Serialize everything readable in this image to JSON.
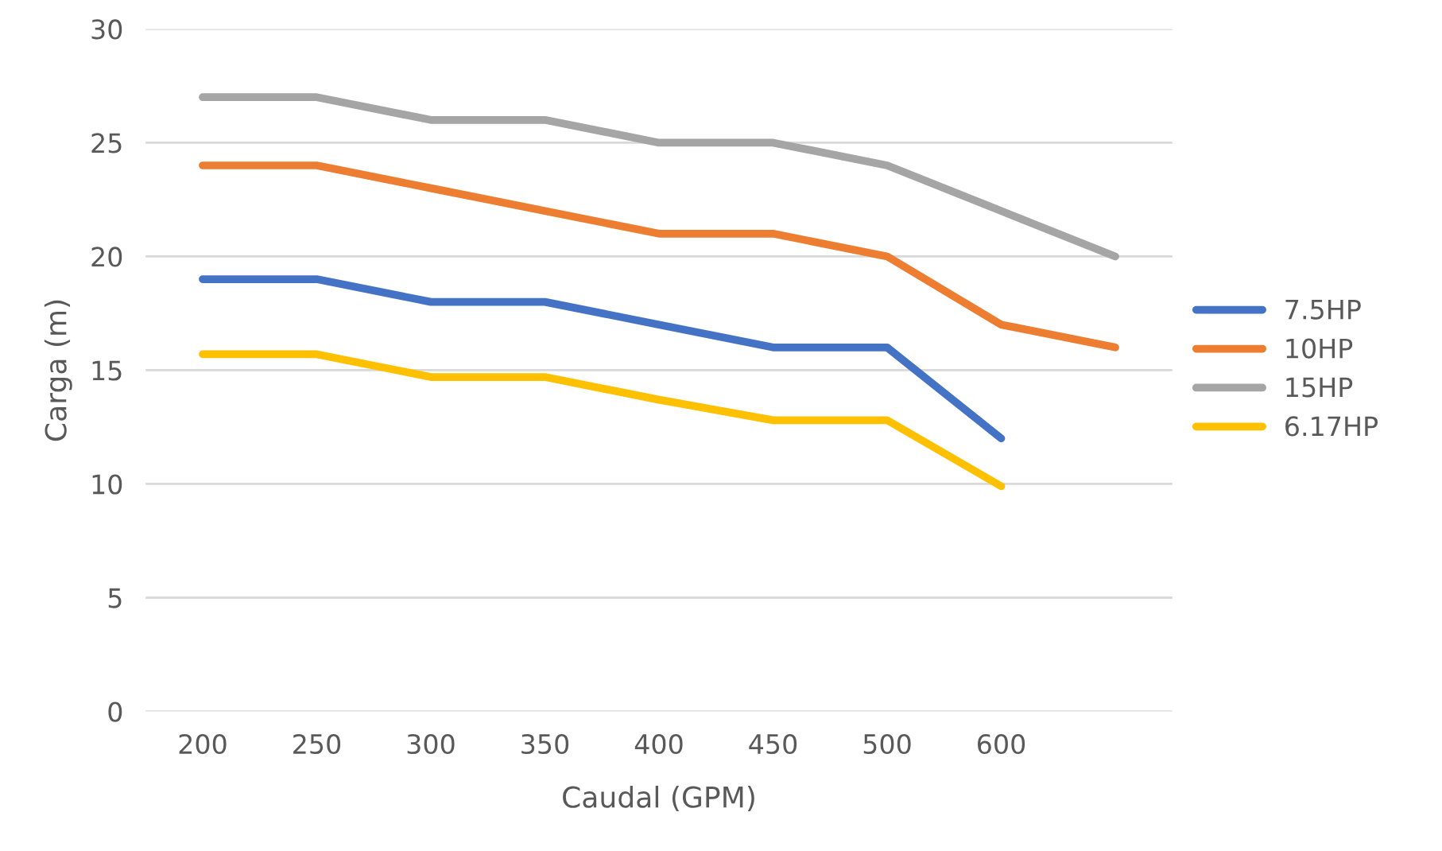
{
  "chart_data": {
    "type": "line",
    "xlabel": "Caudal (GPM)",
    "ylabel": "Carga (m)",
    "categories": [
      "200",
      "250",
      "300",
      "350",
      "400",
      "450",
      "500",
      "600",
      null
    ],
    "series": [
      {
        "name": "7.5HP",
        "color": "#4472c4",
        "values": [
          19,
          19,
          18,
          18,
          17,
          16,
          16,
          12,
          null
        ]
      },
      {
        "name": "10HP",
        "color": "#ed7d31",
        "values": [
          24,
          24,
          23,
          22,
          21,
          21,
          20,
          17,
          16
        ]
      },
      {
        "name": "15HP",
        "color": "#a5a5a5",
        "values": [
          27,
          27,
          26,
          26,
          25,
          25,
          24,
          22,
          20
        ]
      },
      {
        "name": "6.17HP",
        "color": "#ffc000",
        "values": [
          15.7,
          15.7,
          14.7,
          14.7,
          13.7,
          12.8,
          12.8,
          9.9,
          null
        ]
      }
    ],
    "ylim": [
      0,
      30
    ],
    "yticks": [
      0,
      5,
      10,
      15,
      20,
      25,
      30
    ],
    "grid": "y",
    "legend": "right",
    "marker": "none",
    "line_style": "solid"
  }
}
